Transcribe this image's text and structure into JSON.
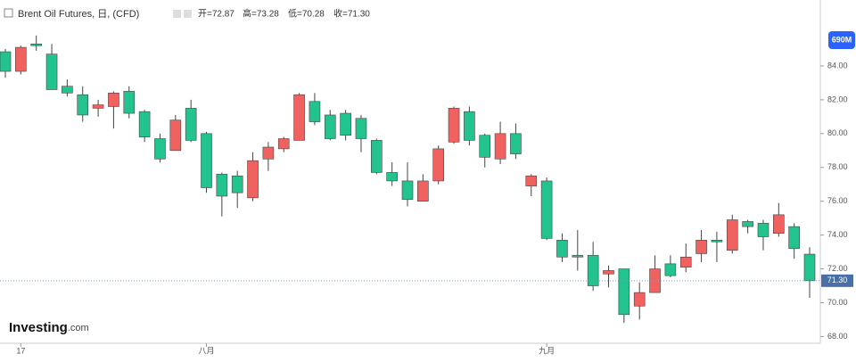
{
  "chart_data": {
    "type": "candlestick",
    "title": "Brent Oil Futures, 日, (CFD)",
    "ohlc_legend": [
      "开=72.87",
      "高=73.28",
      "低=70.28",
      "收=71.30"
    ],
    "categories": [
      null,
      "17",
      null,
      null,
      null,
      null,
      null,
      null,
      null,
      null,
      null,
      null,
      null,
      "八月",
      null,
      null,
      null,
      null,
      null,
      null,
      null,
      null,
      null,
      null,
      null,
      null,
      null,
      null,
      null,
      null,
      null,
      null,
      null,
      null,
      null,
      "九月",
      null,
      null,
      null,
      null,
      null,
      null,
      null,
      null,
      null,
      null,
      null,
      null,
      null,
      null,
      null,
      null,
      null
    ],
    "open": [
      84.84,
      83.68,
      85.3,
      84.7,
      82.8,
      82.3,
      81.5,
      81.6,
      82.5,
      81.3,
      79.7,
      79.0,
      81.5,
      80.0,
      77.6,
      77.5,
      76.2,
      78.5,
      79.1,
      79.6,
      81.9,
      81.1,
      81.2,
      80.9,
      79.6,
      77.7,
      77.2,
      76.0,
      77.2,
      79.5,
      81.3,
      79.9,
      78.5,
      80.0,
      76.9,
      77.2,
      73.7,
      72.8,
      72.8,
      71.7,
      72.0,
      69.8,
      70.6,
      72.3,
      72.1,
      72.9,
      73.7,
      73.1,
      74.8,
      74.7,
      74.1,
      74.5,
      72.87
    ],
    "high": [
      85.0,
      85.2,
      85.8,
      85.3,
      83.2,
      82.8,
      82.0,
      82.5,
      82.8,
      81.4,
      80.0,
      81.1,
      82.0,
      80.1,
      77.7,
      77.8,
      78.9,
      79.5,
      79.8,
      82.4,
      82.4,
      81.4,
      81.4,
      81.1,
      79.7,
      78.3,
      78.3,
      77.6,
      79.3,
      81.6,
      81.6,
      80.0,
      80.7,
      80.6,
      77.6,
      77.4,
      74.1,
      74.3,
      73.6,
      72.2,
      72.0,
      71.2,
      72.8,
      72.8,
      73.5,
      74.3,
      74.2,
      75.2,
      74.9,
      74.9,
      75.9,
      74.7,
      73.28
    ],
    "low": [
      83.3,
      83.5,
      84.9,
      82.6,
      82.2,
      80.7,
      81.0,
      80.3,
      80.9,
      79.5,
      78.3,
      79.0,
      79.5,
      76.5,
      75.1,
      75.6,
      76.0,
      77.8,
      78.9,
      79.6,
      80.5,
      79.6,
      79.6,
      78.9,
      77.6,
      76.9,
      75.7,
      76.0,
      77.0,
      79.4,
      79.3,
      78.0,
      78.2,
      78.5,
      76.3,
      73.7,
      72.4,
      71.9,
      70.7,
      70.9,
      68.8,
      69.0,
      70.6,
      71.5,
      71.8,
      72.4,
      72.4,
      72.9,
      74.1,
      73.1,
      73.9,
      72.6,
      70.28
    ],
    "close": [
      83.68,
      85.1,
      85.2,
      82.6,
      82.4,
      81.1,
      81.7,
      82.4,
      81.2,
      79.8,
      78.5,
      80.8,
      79.6,
      76.8,
      76.3,
      76.5,
      78.4,
      79.2,
      79.7,
      82.3,
      80.7,
      79.7,
      79.9,
      79.7,
      77.7,
      77.2,
      76.1,
      77.2,
      79.1,
      81.5,
      79.6,
      78.6,
      80.0,
      78.8,
      77.5,
      73.8,
      72.7,
      72.7,
      71.0,
      71.9,
      69.3,
      70.6,
      72.0,
      71.6,
      72.7,
      73.7,
      73.6,
      74.9,
      74.5,
      73.9,
      75.2,
      73.2,
      71.3
    ],
    "up_color": "#f0625f",
    "down_color": "#22c38e",
    "ylim": [
      67.6,
      87.9
    ],
    "yticks": [
      {
        "value": 68,
        "label": "68.00"
      },
      {
        "value": 70,
        "label": "70.00"
      },
      {
        "value": 72,
        "label": "72.00"
      },
      {
        "value": 74,
        "label": "74.00"
      },
      {
        "value": 76,
        "label": "76.00"
      },
      {
        "value": 78,
        "label": "78.00"
      },
      {
        "value": 80,
        "label": "80.00"
      },
      {
        "value": 82,
        "label": "82.00"
      },
      {
        "value": 84,
        "label": "84.00"
      }
    ],
    "last_price": {
      "value": 71.3,
      "label": "71.30"
    },
    "volume_badge": "690M",
    "logo": {
      "brand": "Investing",
      "suffix": ".com"
    }
  }
}
